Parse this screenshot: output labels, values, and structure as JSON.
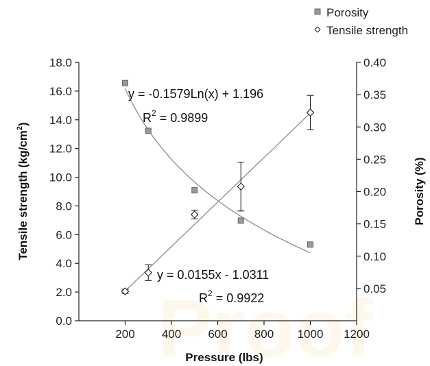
{
  "chart_data": {
    "type": "scatter",
    "x": {
      "label": "Pressure (lbs)",
      "range": [
        0,
        1200
      ],
      "ticks": [
        "200",
        "400",
        "600",
        "800",
        "1000",
        "1200"
      ]
    },
    "y_left": {
      "label": "Tensile strength (kg/cm",
      "label_sup": "2",
      "label_close": ")",
      "range": [
        0,
        18
      ],
      "ticks": [
        "0.0",
        "2.0",
        "4.0",
        "6.0",
        "8.0",
        "10.0",
        "12.0",
        "14.0",
        "16.0",
        "18.0"
      ]
    },
    "y_right": {
      "label": "Porosity (%)",
      "range": [
        0,
        0.4
      ],
      "ticks": [
        "0.05",
        "0.10",
        "0.15",
        "0.20",
        "0.25",
        "0.30",
        "0.35",
        "0.40"
      ]
    },
    "series": [
      {
        "name": "Porosity",
        "axis": "right",
        "marker": "square",
        "color": "#9a9a9a",
        "points": [
          {
            "x": 200,
            "y": 0.368
          },
          {
            "x": 300,
            "y": 0.294
          },
          {
            "x": 500,
            "y": 0.202
          },
          {
            "x": 700,
            "y": 0.155
          },
          {
            "x": 1000,
            "y": 0.118
          }
        ],
        "trendline": {
          "type": "log",
          "a": -0.1579,
          "b": 1.196,
          "x_from": 200,
          "x_to": 1000
        }
      },
      {
        "name": "Tensile strength",
        "axis": "left",
        "marker": "diamond",
        "color": "#ffffff",
        "points": [
          {
            "x": 200,
            "y": 2.05,
            "err": 0.15
          },
          {
            "x": 300,
            "y": 3.35,
            "err": 0.55
          },
          {
            "x": 500,
            "y": 7.4,
            "err": 0.3
          },
          {
            "x": 700,
            "y": 9.35,
            "err": 1.7
          },
          {
            "x": 1000,
            "y": 14.5,
            "err": 1.2
          }
        ],
        "trendline": {
          "type": "linear",
          "m": 0.0155,
          "c": -1.0311,
          "x_from": 200,
          "x_to": 1000
        }
      }
    ],
    "legend": {
      "position": "top-right"
    },
    "annotations": {
      "log_eq": "y = -0.1579Ln(x) + 1.196",
      "log_r2_value": " = 0.9899",
      "lin_eq": "y = 0.0155x - 1.0311",
      "lin_r2_value": " = 0.9922",
      "r2_base": "R",
      "r2_sup": "2"
    },
    "grid": false
  },
  "watermark_text": "Proof",
  "colors": {
    "trendline": "#8a8a8a",
    "axis": "#222222",
    "watermark": "#f4a21b"
  }
}
